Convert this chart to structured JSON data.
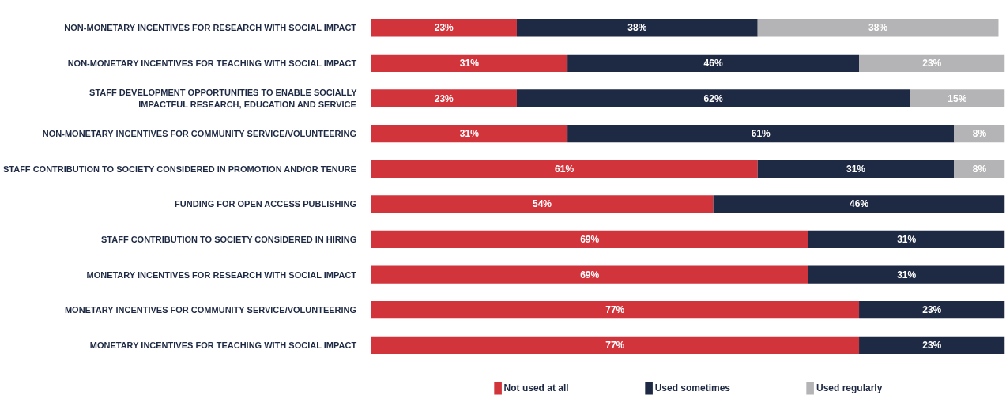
{
  "chart_data": {
    "type": "bar",
    "orientation": "horizontal",
    "stacked": true,
    "legend": "bottom",
    "grid": false,
    "tick_labels": "y",
    "xlim": [
      0,
      100
    ],
    "categories": [
      "NON-MONETARY INCENTIVES FOR RESEARCH WITH SOCIAL IMPACT",
      "NON-MONETARY INCENTIVES FOR TEACHING WITH SOCIAL IMPACT",
      "STAFF DEVELOPMENT OPPORTUNITIES TO ENABLE SOCIALLY\nIMPACTFUL RESEARCH, EDUCATION AND SERVICE",
      "NON-MONETARY INCENTIVES FOR COMMUNITY SERVICE/VOLUNTEERING",
      "STAFF CONTRIBUTION TO SOCIETY CONSIDERED IN PROMOTION AND/OR TENURE",
      "FUNDING FOR OPEN ACCESS PUBLISHING",
      "STAFF CONTRIBUTION TO SOCIETY CONSIDERED IN HIRING",
      "MONETARY INCENTIVES FOR RESEARCH WITH SOCIAL IMPACT",
      "MONETARY INCENTIVES FOR COMMUNITY SERVICE/VOLUNTEERING",
      "MONETARY INCENTIVES FOR TEACHING WITH SOCIAL IMPACT"
    ],
    "series": [
      {
        "name": "Not used at all",
        "color": "#d2343c",
        "values": [
          23,
          31,
          23,
          31,
          61,
          54,
          69,
          69,
          77,
          77
        ],
        "value_labels": [
          "23%",
          "31%",
          "23%",
          "31%",
          "61%",
          "54%",
          "69%",
          "69%",
          "77%",
          "77%"
        ]
      },
      {
        "name": "Used sometimes",
        "color": "#1e2944",
        "values": [
          38,
          46,
          62,
          61,
          31,
          46,
          31,
          31,
          23,
          23
        ],
        "value_labels": [
          "38%",
          "46%",
          "62%",
          "61%",
          "31%",
          "46%",
          "31%",
          "31%",
          "23%",
          "23%"
        ]
      },
      {
        "name": "Used regularly",
        "color": "#b4b4b6",
        "values": [
          38,
          23,
          15,
          8,
          8,
          null,
          null,
          null,
          null,
          null
        ],
        "value_labels": [
          "38%",
          "23%",
          "15%",
          "8%",
          "8%",
          null,
          null,
          null,
          null,
          null
        ]
      }
    ]
  }
}
